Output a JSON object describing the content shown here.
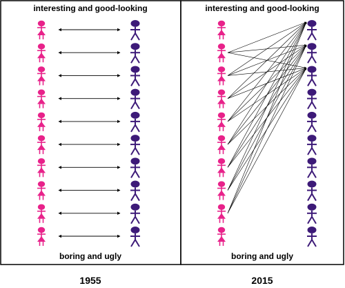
{
  "panels": [
    {
      "top_label": "interesting and good-looking",
      "bottom_label": "boring and ugly",
      "caption": "1955",
      "women_count": 10,
      "men_count": 10,
      "connections": [
        [
          0,
          0
        ],
        [
          1,
          1
        ],
        [
          2,
          2
        ],
        [
          3,
          3
        ],
        [
          4,
          4
        ],
        [
          5,
          5
        ],
        [
          6,
          6
        ],
        [
          7,
          7
        ],
        [
          8,
          8
        ],
        [
          9,
          9
        ]
      ]
    },
    {
      "top_label": "interesting and good-looking",
      "bottom_label": "boring and ugly",
      "caption": "2015",
      "women_count": 10,
      "men_count": 10,
      "connections": [
        [
          1,
          0
        ],
        [
          1,
          1
        ],
        [
          1,
          2
        ],
        [
          2,
          0
        ],
        [
          2,
          1
        ],
        [
          2,
          2
        ],
        [
          3,
          0
        ],
        [
          3,
          1
        ],
        [
          3,
          2
        ],
        [
          4,
          0
        ],
        [
          4,
          1
        ],
        [
          4,
          2
        ],
        [
          5,
          0
        ],
        [
          5,
          1
        ],
        [
          5,
          2
        ],
        [
          6,
          0
        ],
        [
          6,
          1
        ],
        [
          6,
          2
        ],
        [
          7,
          0
        ],
        [
          7,
          1
        ],
        [
          7,
          2
        ],
        [
          8,
          0
        ],
        [
          8,
          1
        ],
        [
          8,
          2
        ]
      ]
    }
  ],
  "colors": {
    "woman": "#e8228a",
    "man": "#3d1a78",
    "border": "#000000",
    "arrow": "#000000"
  }
}
